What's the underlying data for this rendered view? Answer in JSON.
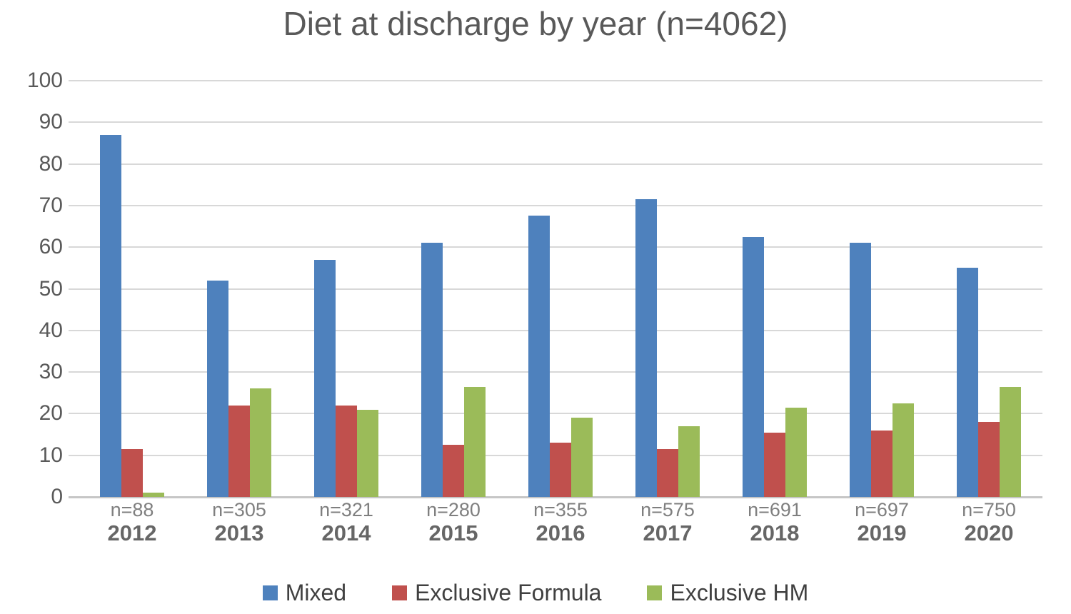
{
  "title": "Diet at discharge by year (n=4062)",
  "colors": {
    "mixed": "#4e81bd",
    "formula": "#c0504d",
    "hm": "#9bbb59",
    "grid": "#d8d8d8",
    "baseline": "#c6c6c6",
    "axis_text": "#595959",
    "n_label_text": "#7f7f7f",
    "year_label_text": "#666666",
    "legend_text": "#404040"
  },
  "chart_data": {
    "type": "bar",
    "title": "Diet at discharge by year (n=4062)",
    "categories": [
      "2012",
      "2013",
      "2014",
      "2015",
      "2016",
      "2017",
      "2018",
      "2019",
      "2020"
    ],
    "n_labels": [
      "n=88",
      "n=305",
      "n=321",
      "n=280",
      "n=355",
      "n=575",
      "n=691",
      "n=697",
      "n=750"
    ],
    "series": [
      {
        "name": "Mixed",
        "color_key": "mixed",
        "values": [
          87,
          52,
          57,
          61,
          67.5,
          71.5,
          62.5,
          61,
          55
        ]
      },
      {
        "name": "Exclusive Formula",
        "color_key": "formula",
        "values": [
          11.5,
          22,
          22,
          12.5,
          13,
          11.5,
          15.5,
          16,
          18
        ]
      },
      {
        "name": "Exclusive HM",
        "color_key": "hm",
        "values": [
          1,
          26,
          21,
          26.5,
          19,
          17,
          21.5,
          22.5,
          26.5
        ]
      }
    ],
    "xlabel": "",
    "ylabel": "",
    "ylim": [
      0,
      100
    ],
    "yticks": [
      0,
      10,
      20,
      30,
      40,
      50,
      60,
      70,
      80,
      90,
      100
    ],
    "grid": "horizontal",
    "legend_position": "bottom"
  }
}
